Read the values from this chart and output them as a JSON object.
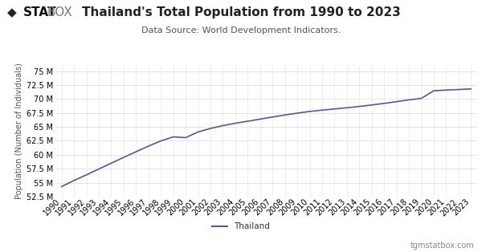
{
  "title": "Thailand's Total Population from 1990 to 2023",
  "subtitle": "Data Source: World Development Indicators.",
  "ylabel": "Population (Number of Individuals)",
  "legend_label": "Thailand",
  "watermark": "tgmstatbox.com",
  "line_color": "#6b4f8c",
  "background_color": "#ffffff",
  "grid_color": "#e0e0e0",
  "years": [
    1990,
    1991,
    1992,
    1993,
    1994,
    1995,
    1996,
    1997,
    1998,
    1999,
    2000,
    2001,
    2002,
    2003,
    2004,
    2005,
    2006,
    2007,
    2008,
    2009,
    2010,
    2011,
    2012,
    2013,
    2014,
    2015,
    2016,
    2017,
    2018,
    2019,
    2020,
    2021,
    2022,
    2023
  ],
  "population": [
    54292000,
    55385000,
    56388000,
    57440000,
    58488000,
    59529000,
    60540000,
    61544000,
    62479000,
    63208000,
    63066000,
    64090000,
    64716000,
    65219000,
    65647000,
    66009000,
    66387000,
    66765000,
    67136000,
    67455000,
    67765000,
    68001000,
    68209000,
    68425000,
    68659000,
    68922000,
    69209000,
    69521000,
    69843000,
    70116000,
    71476000,
    71601000,
    71697000,
    71802000
  ],
  "ylim_min": 52500000,
  "ylim_max": 76000000,
  "yticks": [
    52500000,
    55000000,
    57500000,
    60000000,
    62500000,
    65000000,
    67500000,
    70000000,
    72500000,
    75000000
  ],
  "title_fontsize": 11,
  "subtitle_fontsize": 8,
  "tick_fontsize": 7,
  "ylabel_fontsize": 7,
  "legend_fontsize": 7.5,
  "watermark_fontsize": 7
}
